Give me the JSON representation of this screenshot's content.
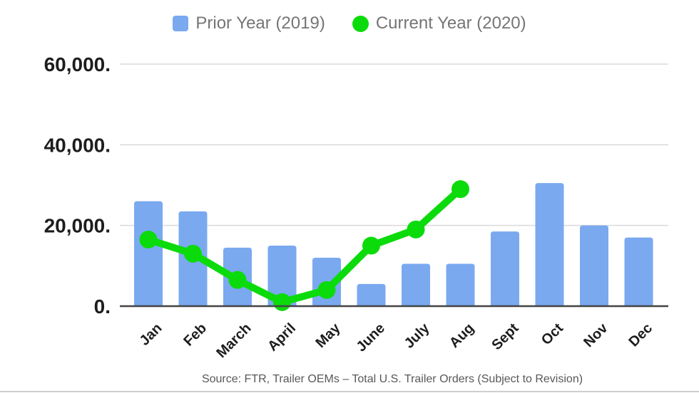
{
  "legend": {
    "items": [
      {
        "label": "Prior Year (2019)",
        "marker": "square",
        "color": "#7aa9f0"
      },
      {
        "label": "Current Year (2020)",
        "marker": "circle",
        "color": "#0bdb0b"
      }
    ]
  },
  "source_note": "Source: FTR, Trailer OEMs – Total U.S. Trailer Orders (Subject to Revision)",
  "colors": {
    "bar_blue": "#7aa9f0",
    "line_green": "#0bdb0b",
    "gridline": "#dadada",
    "axis_baseline": "#444444",
    "tick_text": "#1d1d1d",
    "legend_text": "#757575",
    "source_text": "#585858",
    "bottom_rule": "#cfcfcf"
  },
  "chart_data": {
    "type": "bar",
    "subtype": "combo-bar-line",
    "categories": [
      "Jan",
      "Feb",
      "March",
      "April",
      "May",
      "June",
      "July",
      "Aug",
      "Sept",
      "Oct",
      "Nov",
      "Dec"
    ],
    "series": [
      {
        "name": "Prior Year (2019)",
        "type": "bar",
        "color": "#7aa9f0",
        "values": [
          26000,
          23500,
          14500,
          15000,
          12000,
          5500,
          10500,
          10500,
          18500,
          30500,
          20000,
          17000
        ]
      },
      {
        "name": "Current Year (2020)",
        "type": "line",
        "color": "#0bdb0b",
        "values": [
          16500,
          13000,
          6500,
          1000,
          4000,
          15000,
          19000,
          29000,
          null,
          null,
          null,
          null
        ]
      }
    ],
    "title": "",
    "xlabel": "",
    "ylabel": "",
    "ylim": [
      0,
      60000
    ],
    "y_ticks": [
      {
        "value": 0,
        "label": "0."
      },
      {
        "value": 20000,
        "label": "20,000."
      },
      {
        "value": 40000,
        "label": "40,000."
      },
      {
        "value": 60000,
        "label": "60,000."
      }
    ],
    "grid": true,
    "legend_position": "top"
  }
}
